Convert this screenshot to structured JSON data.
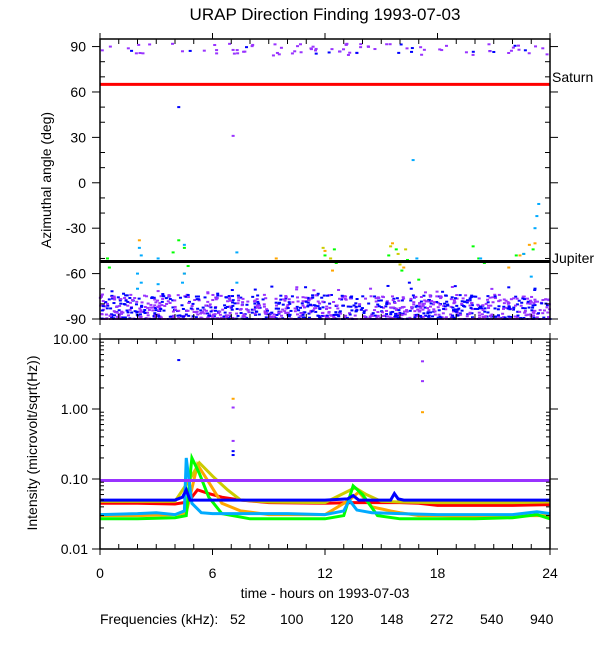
{
  "chart_data": [
    {
      "type": "scatter",
      "title": "URAP Direction Finding  1993-07-03",
      "ylabel": "Azimuthal angle (deg)",
      "xlim": [
        0,
        24
      ],
      "ylim": [
        -90,
        95
      ],
      "yticks": [
        "90",
        "60",
        "30",
        "0",
        "-30",
        "-60",
        "-90"
      ],
      "reference_lines": [
        {
          "label": "Saturn",
          "value": 65,
          "color": "#ff0000"
        },
        {
          "label": "Jupiter",
          "value": -52,
          "color": "#000000"
        }
      ],
      "dense_band": {
        "frequencies": [
          "540",
          "940"
        ],
        "az_range": [
          -92,
          -74
        ],
        "x_range": [
          0,
          24
        ]
      },
      "top_band": {
        "frequencies": [
          "940",
          "540"
        ],
        "az_range": [
          84,
          92
        ],
        "x_range": [
          0,
          24
        ]
      },
      "series": [
        {
          "name": "52",
          "points": []
        },
        {
          "name": "100",
          "points": [
            [
              2.1,
              -38
            ],
            [
              9.4,
              -50
            ],
            [
              12.0,
              -45
            ],
            [
              12.4,
              -58
            ],
            [
              15.6,
              -40
            ],
            [
              16.2,
              -56
            ],
            [
              21.8,
              -56
            ],
            [
              22.4,
              -48
            ],
            [
              22.9,
              -41
            ],
            [
              23.2,
              -40
            ],
            [
              4.5,
              -60
            ]
          ]
        },
        {
          "name": "120",
          "points": [
            [
              11.9,
              -43
            ],
            [
              12.3,
              -50
            ],
            [
              15.5,
              -42
            ],
            [
              15.9,
              -47
            ],
            [
              16.3,
              -44
            ],
            [
              16.0,
              -54
            ],
            [
              22.6,
              -47
            ],
            [
              22.9,
              -52
            ]
          ]
        },
        {
          "name": "148",
          "points": [
            [
              0.4,
              -50
            ],
            [
              0.5,
              -56
            ],
            [
              3.9,
              -46
            ],
            [
              4.2,
              -38
            ],
            [
              4.5,
              -43
            ],
            [
              4.4,
              -52
            ],
            [
              4.7,
              -55
            ],
            [
              12.0,
              -48
            ],
            [
              12.5,
              -44
            ],
            [
              12.6,
              -53
            ],
            [
              15.4,
              -48
            ],
            [
              15.8,
              -44
            ],
            [
              16.4,
              -51
            ],
            [
              16.1,
              -58
            ],
            [
              19.9,
              -42
            ],
            [
              20.2,
              -50
            ],
            [
              20.5,
              -53
            ],
            [
              22.2,
              -48
            ],
            [
              22.8,
              -52
            ],
            [
              23.1,
              -44
            ],
            [
              17.0,
              -64
            ]
          ]
        },
        {
          "name": "272",
          "points": [
            [
              2.1,
              -43
            ],
            [
              2.2,
              -48
            ],
            [
              2.0,
              -60
            ],
            [
              2.2,
              -66
            ],
            [
              2.0,
              -70
            ],
            [
              3.1,
              -50
            ],
            [
              3.1,
              -67
            ],
            [
              4.5,
              -41
            ],
            [
              4.5,
              -60
            ],
            [
              4.4,
              -66
            ],
            [
              7.3,
              -46
            ],
            [
              7.3,
              -52
            ],
            [
              7.3,
              -66
            ],
            [
              16.7,
              15
            ],
            [
              16.9,
              -50
            ],
            [
              20.3,
              -50
            ],
            [
              22.0,
              -52
            ],
            [
              22.6,
              -47
            ],
            [
              23.2,
              -30
            ],
            [
              23.3,
              -22
            ],
            [
              23.4,
              -14
            ],
            [
              23.0,
              -62
            ],
            [
              23.2,
              -70
            ]
          ]
        },
        {
          "name": "540",
          "points": [
            [
              4.2,
              50
            ],
            [
              3.4,
              -75
            ],
            [
              16.5,
              -66
            ],
            [
              16.6,
              -70
            ],
            [
              23.2,
              -70
            ]
          ]
        },
        {
          "name": "940",
          "points": [
            [
              7.1,
              31
            ]
          ]
        }
      ]
    },
    {
      "type": "line",
      "ylabel": "Intensity (microvolt/sqrt(Hz))",
      "xlabel": "time - hours on 1993-07-03",
      "xlim": [
        0,
        24
      ],
      "ylim": [
        0.01,
        10
      ],
      "yscale": "log",
      "xticks": [
        "0",
        "6",
        "12",
        "18",
        "24"
      ],
      "yticks": [
        "10.00",
        "1.00",
        "0.10",
        "0.01"
      ],
      "legend_title": "Frequencies (kHz):",
      "legend_placement": "bottom",
      "series": [
        {
          "name": "52",
          "color": "#ff0000",
          "x": [
            0,
            2,
            4,
            4.7,
            5.2,
            5.8,
            6.5,
            7.5,
            9,
            12,
            13.5,
            15,
            16,
            17,
            18,
            20,
            22,
            24
          ],
          "y": [
            0.045,
            0.045,
            0.044,
            0.047,
            0.07,
            0.062,
            0.055,
            0.05,
            0.046,
            0.045,
            0.046,
            0.046,
            0.046,
            0.045,
            0.042,
            0.042,
            0.042,
            0.043
          ]
        },
        {
          "name": "100",
          "color": "#ffa500",
          "x": [
            0,
            2,
            4,
            4.6,
            5.2,
            5.8,
            6.5,
            7.5,
            9,
            12,
            13.3,
            13.8,
            14.5,
            15.5,
            16,
            17,
            18,
            20,
            22,
            24
          ],
          "y": [
            0.03,
            0.03,
            0.031,
            0.033,
            0.16,
            0.09,
            0.045,
            0.035,
            0.031,
            0.031,
            0.05,
            0.065,
            0.04,
            0.035,
            0.033,
            0.03,
            0.03,
            0.029,
            0.03,
            0.03
          ]
        },
        {
          "name": "120",
          "color": "#cccc00",
          "x": [
            0,
            4,
            4.8,
            5.3,
            6,
            6.8,
            7.5,
            9,
            12,
            13.6,
            14.2,
            15,
            16,
            18,
            20,
            22,
            24
          ],
          "y": [
            0.048,
            0.048,
            0.1,
            0.17,
            0.11,
            0.07,
            0.05,
            0.047,
            0.046,
            0.075,
            0.06,
            0.048,
            0.047,
            0.046,
            0.046,
            0.046,
            0.047
          ]
        },
        {
          "name": "148",
          "color": "#00ff00",
          "x": [
            0,
            2,
            4,
            4.6,
            4.9,
            5.3,
            5.8,
            6.5,
            8,
            10,
            12,
            13.0,
            13.5,
            14.0,
            14.8,
            16,
            17,
            18,
            20,
            22,
            23.3,
            24
          ],
          "y": [
            0.027,
            0.027,
            0.028,
            0.03,
            0.2,
            0.12,
            0.055,
            0.032,
            0.027,
            0.027,
            0.027,
            0.03,
            0.08,
            0.06,
            0.03,
            0.027,
            0.027,
            0.027,
            0.027,
            0.028,
            0.031,
            0.027
          ]
        },
        {
          "name": "272",
          "color": "#00aaff",
          "x": [
            0,
            2,
            3,
            4,
            4.5,
            4.6,
            4.9,
            5.4,
            6,
            8,
            10,
            12,
            13.0,
            13.3,
            13.7,
            14.5,
            16,
            18,
            20,
            22,
            23.3,
            24
          ],
          "y": [
            0.031,
            0.032,
            0.033,
            0.031,
            0.035,
            0.2,
            0.045,
            0.033,
            0.032,
            0.032,
            0.032,
            0.031,
            0.035,
            0.05,
            0.036,
            0.033,
            0.032,
            0.031,
            0.031,
            0.031,
            0.034,
            0.032
          ]
        },
        {
          "name": "540",
          "color": "#0000ff",
          "x": [
            0,
            4,
            4.4,
            4.6,
            4.8,
            5.0,
            8,
            12,
            13.2,
            13.5,
            13.8,
            15.5,
            15.7,
            15.9,
            16.2,
            24
          ],
          "y": [
            0.05,
            0.05,
            0.055,
            0.07,
            0.05,
            0.05,
            0.05,
            0.05,
            0.052,
            0.058,
            0.05,
            0.05,
            0.062,
            0.052,
            0.05,
            0.05
          ]
        },
        {
          "name": "940",
          "color": "#9933ff",
          "x": [
            0,
            24
          ],
          "y": [
            0.095,
            0.095
          ]
        }
      ],
      "isolated_points": [
        {
          "freq": "540",
          "x": 4.2,
          "y": 5.0
        },
        {
          "freq": "940",
          "x": 17.2,
          "y": 4.8
        },
        {
          "freq": "940",
          "x": 17.2,
          "y": 2.5
        },
        {
          "freq": "100",
          "x": 17.2,
          "y": 0.9
        },
        {
          "freq": "100",
          "x": 7.1,
          "y": 1.4
        },
        {
          "freq": "940",
          "x": 7.1,
          "y": 1.05
        },
        {
          "freq": "940",
          "x": 7.1,
          "y": 0.35
        },
        {
          "freq": "540",
          "x": 7.1,
          "y": 0.25
        },
        {
          "freq": "540",
          "x": 7.1,
          "y": 0.22
        }
      ]
    }
  ],
  "colors": {
    "52": "#ff0000",
    "100": "#ffa500",
    "120": "#cccc00",
    "148": "#00ff00",
    "272": "#00aaff",
    "540": "#0000ff",
    "940": "#9933ff"
  },
  "legend_items": [
    "52",
    "100",
    "120",
    "148",
    "272",
    "540",
    "940"
  ]
}
